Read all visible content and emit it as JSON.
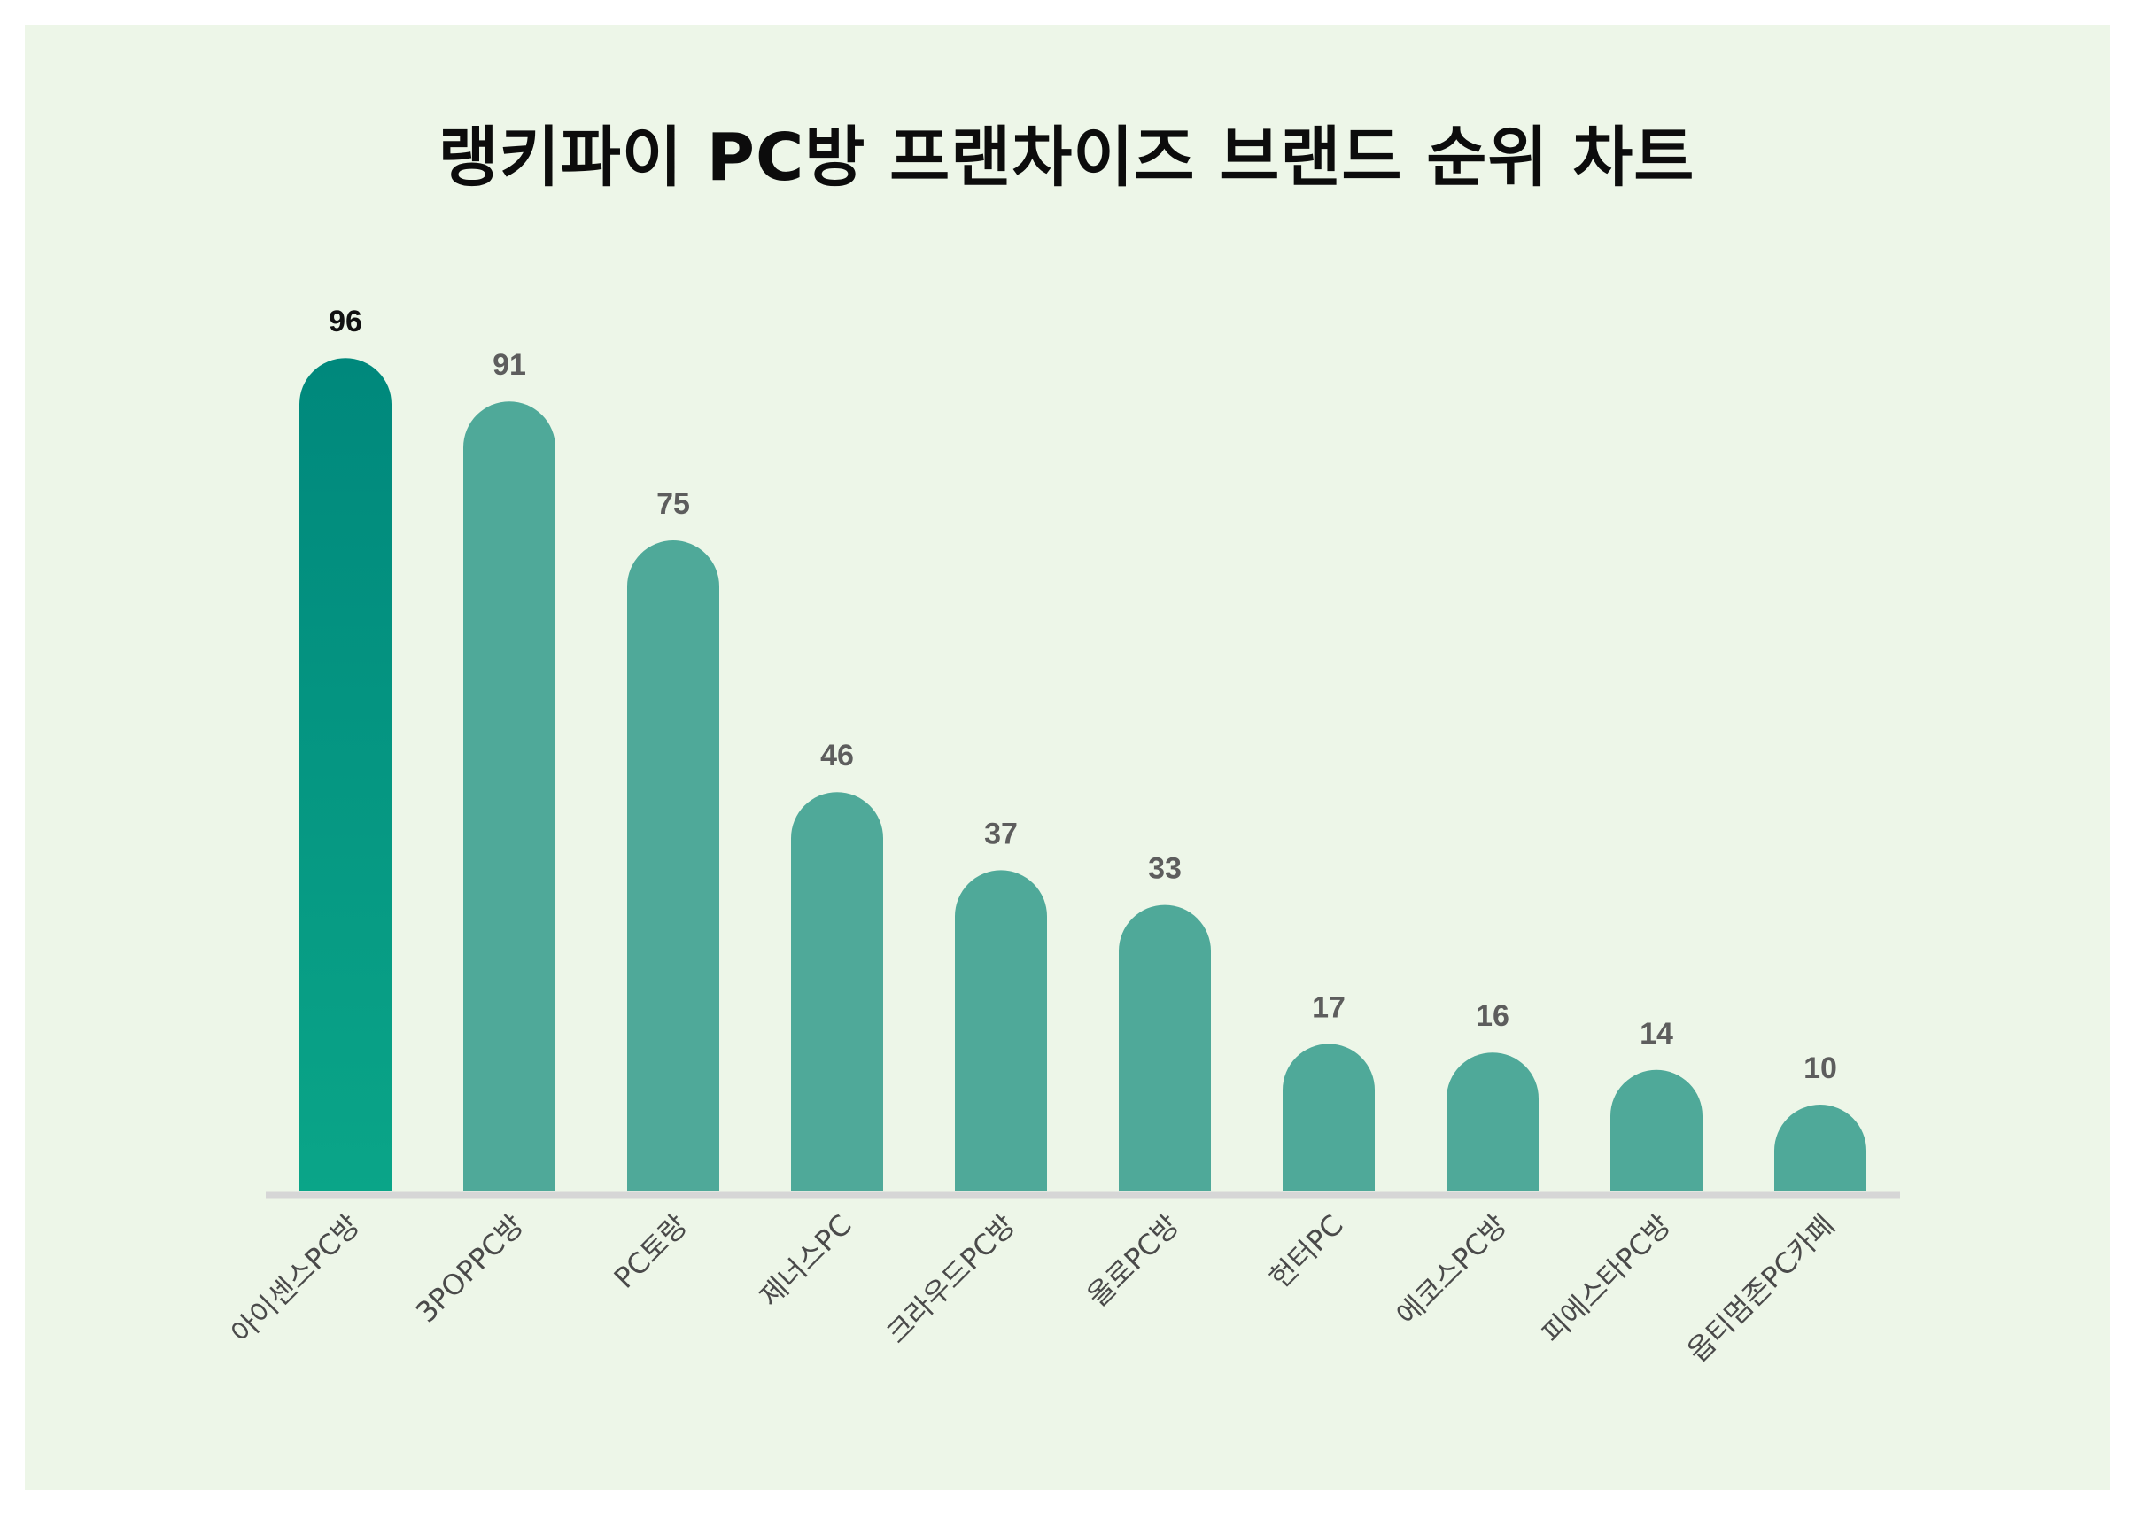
{
  "title": "랭키파이 PC방 프랜차이즈 브랜드 순위 차트",
  "colors": {
    "background": "#edf6e8",
    "bar": "#4fa999",
    "top_bar_start": "#0aa588",
    "top_bar_end": "#00887c",
    "axis": "#d6d6d6"
  },
  "chart_data": {
    "type": "bar",
    "title": "랭키파이 PC방 프랜차이즈 브랜드 순위 차트",
    "xlabel": "",
    "ylabel": "",
    "categories": [
      "아이센스PC방",
      "3POPPC방",
      "PC토랑",
      "제너스PC",
      "크라우드PC방",
      "올로PC방",
      "헌터PC",
      "에코스PC방",
      "피에스타PC방",
      "옵티멈존PC카페"
    ],
    "values": [
      96,
      91,
      75,
      46,
      37,
      33,
      17,
      16,
      14,
      10
    ],
    "ylim": [
      0,
      100
    ],
    "grid": false,
    "legend": "none"
  }
}
